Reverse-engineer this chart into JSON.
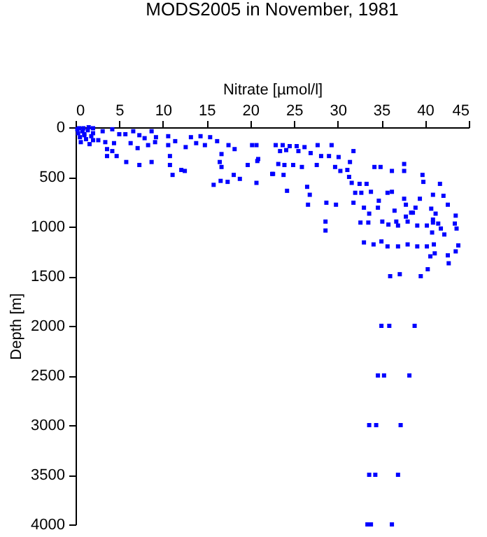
{
  "chart_data": {
    "type": "scatter",
    "title": "MODS2005 in November, 1981",
    "xlabel": "Nitrate [µmol/l]",
    "ylabel": "Depth [m]",
    "xlim": [
      0,
      45
    ],
    "xticks": [
      0,
      5,
      10,
      15,
      20,
      25,
      30,
      35,
      40,
      45
    ],
    "ylim": [
      4000,
      0
    ],
    "yticks": [
      0,
      500,
      1000,
      1500,
      2000,
      2500,
      3000,
      3500,
      4000
    ],
    "grid": false,
    "marker": "square",
    "series": [
      {
        "color": "#0000ff",
        "x": [
          0.2,
          0.3,
          0.5,
          0.6,
          0.8,
          1.0,
          1.2,
          1.4,
          1.6,
          0.4,
          0.9,
          1.8,
          2.0,
          1.5,
          2.0,
          3.1,
          4.2,
          2.6,
          3.4,
          4.4,
          3.6,
          4.2,
          3.6,
          4.7,
          5.8,
          5.0,
          5.7,
          6.6,
          7.3,
          7.9,
          8.7,
          9.2,
          9.1,
          8.3,
          7.1,
          6.3,
          7.3,
          8.7,
          10.6,
          10.6,
          11.4,
          10.8,
          10.8,
          11.1,
          12.1,
          12.5,
          12.6,
          13.2,
          13.8,
          14.3,
          14.8,
          15.4,
          16.2,
          16.7,
          16.5,
          16.7,
          17.5,
          18.2,
          18.1,
          18.8,
          19.7,
          20.2,
          20.8,
          20.7,
          15.8,
          16.6,
          17.4,
          22.6,
          1.0,
          2.0,
          20.7,
          22.9,
          23.7,
          24.5,
          25.3,
          26.2,
          27.7,
          29.3,
          23.4,
          24.1,
          25.5,
          26.9,
          28.1,
          29.0,
          30.1,
          31.8,
          20.9,
          23.2,
          23.9,
          24.9,
          25.9,
          27.6,
          29.7,
          30.3,
          22.5,
          23.8,
          26.5,
          26.8,
          24.2,
          31.3,
          31.6,
          32.5,
          34.2,
          34.9,
          36.2,
          37.6,
          37.6,
          39.7,
          39.8,
          41.7,
          42.1,
          40.9,
          39.4,
          38.9,
          37.6,
          36.2,
          35.7,
          34.7,
          33.8,
          32.7,
          32.0,
          33.3,
          28.7,
          29.8,
          31.8,
          33.0,
          34.6,
          36.5,
          37.8,
          38.6,
          40.7,
          42.6,
          43.5,
          26.6,
          28.6,
          28.6,
          32.6,
          33.5,
          36.7,
          37.8,
          40.9,
          41.8,
          43.4,
          31.1,
          31.4,
          33.6,
          35.1,
          35.8,
          36.9,
          38.0,
          38.4,
          39.1,
          40.2,
          40.9,
          41.2,
          40.8,
          41.5,
          42.2,
          43.6,
          33.0,
          34.1,
          35.0,
          35.7,
          36.9,
          38.0,
          39.1,
          40.2,
          41.0,
          40.6,
          41.1,
          42.6,
          42.7,
          43.5,
          43.8,
          40.3,
          36.0,
          37.1,
          39.5,
          35.0,
          35.9,
          38.8,
          34.6,
          35.3,
          38.2,
          33.6,
          34.4,
          37.2,
          33.6,
          34.3,
          36.9,
          33.4,
          33.8,
          36.2
        ],
        "values": [
          20,
          60,
          100,
          150,
          40,
          80,
          120,
          30,
          170,
          10,
          10,
          90,
          60,
          0,
          10,
          40,
          20,
          130,
          150,
          160,
          220,
          240,
          290,
          290,
          350,
          70,
          70,
          40,
          80,
          110,
          40,
          100,
          150,
          180,
          210,
          160,
          380,
          350,
          90,
          180,
          140,
          290,
          380,
          480,
          430,
          440,
          200,
          100,
          160,
          90,
          180,
          100,
          140,
          270,
          350,
          400,
          180,
          220,
          480,
          520,
          380,
          180,
          340,
          560,
          580,
          540,
          550,
          470,
          70,
          130,
          180,
          180,
          180,
          190,
          190,
          200,
          180,
          180,
          240,
          230,
          240,
          260,
          290,
          290,
          300,
          240,
          320,
          370,
          380,
          380,
          400,
          380,
          400,
          440,
          470,
          480,
          600,
          680,
          640,
          500,
          560,
          570,
          400,
          400,
          440,
          370,
          440,
          480,
          550,
          570,
          690,
          680,
          720,
          810,
          720,
          650,
          660,
          740,
          650,
          660,
          660,
          570,
          760,
          780,
          760,
          810,
          810,
          840,
          780,
          860,
          820,
          780,
          890,
          780,
          950,
          1040,
          960,
          960,
          950,
          900,
          960,
          1020,
          970,
          430,
          350,
          870,
          950,
          980,
          990,
          950,
          860,
          990,
          990,
          930,
          870,
          1060,
          970,
          1080,
          1020,
          1160,
          1180,
          1150,
          1200,
          1200,
          1180,
          1200,
          1200,
          1180,
          1300,
          1270,
          1290,
          1370,
          1250,
          1190,
          1430,
          1500,
          1480,
          1500,
          2000,
          2000,
          2000,
          2500,
          2500,
          2500,
          3000,
          3000,
          3000,
          3500,
          3500,
          3500,
          4000,
          4000,
          4000
        ]
      }
    ]
  }
}
